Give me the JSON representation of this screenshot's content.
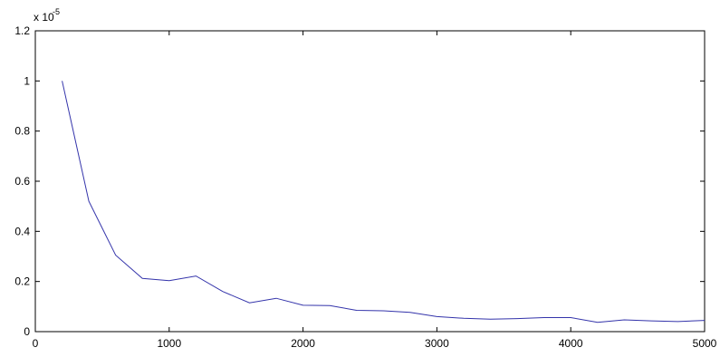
{
  "chart_data": {
    "type": "line",
    "xlim": [
      0,
      5000
    ],
    "ylim": [
      0,
      1.2
    ],
    "y_multiplier_label": "x 10",
    "y_multiplier_exponent": "-5",
    "x_ticks": [
      0,
      1000,
      2000,
      3000,
      4000,
      5000
    ],
    "x_tick_labels": [
      "0",
      "1000",
      "2000",
      "3000",
      "4000",
      "5000"
    ],
    "y_ticks": [
      0,
      0.2,
      0.4,
      0.6,
      0.8,
      1.0,
      1.2
    ],
    "y_tick_labels": [
      "0",
      "0.2",
      "0.4",
      "0.6",
      "0.8",
      "1",
      "1.2"
    ],
    "grid": false,
    "series": [
      {
        "color": "#3333aa",
        "x": [
          200,
          400,
          600,
          800,
          1000,
          1200,
          1400,
          1600,
          1800,
          2000,
          2200,
          2400,
          2600,
          2800,
          3000,
          3200,
          3400,
          3600,
          3800,
          4000,
          4200,
          4400,
          4600,
          4800,
          5000
        ],
        "y": [
          1.0,
          0.52,
          0.305,
          0.212,
          0.203,
          0.222,
          0.16,
          0.115,
          0.133,
          0.105,
          0.104,
          0.085,
          0.083,
          0.077,
          0.06,
          0.053,
          0.05,
          0.052,
          0.056,
          0.056,
          0.037,
          0.047,
          0.043,
          0.04,
          0.045
        ]
      }
    ]
  }
}
